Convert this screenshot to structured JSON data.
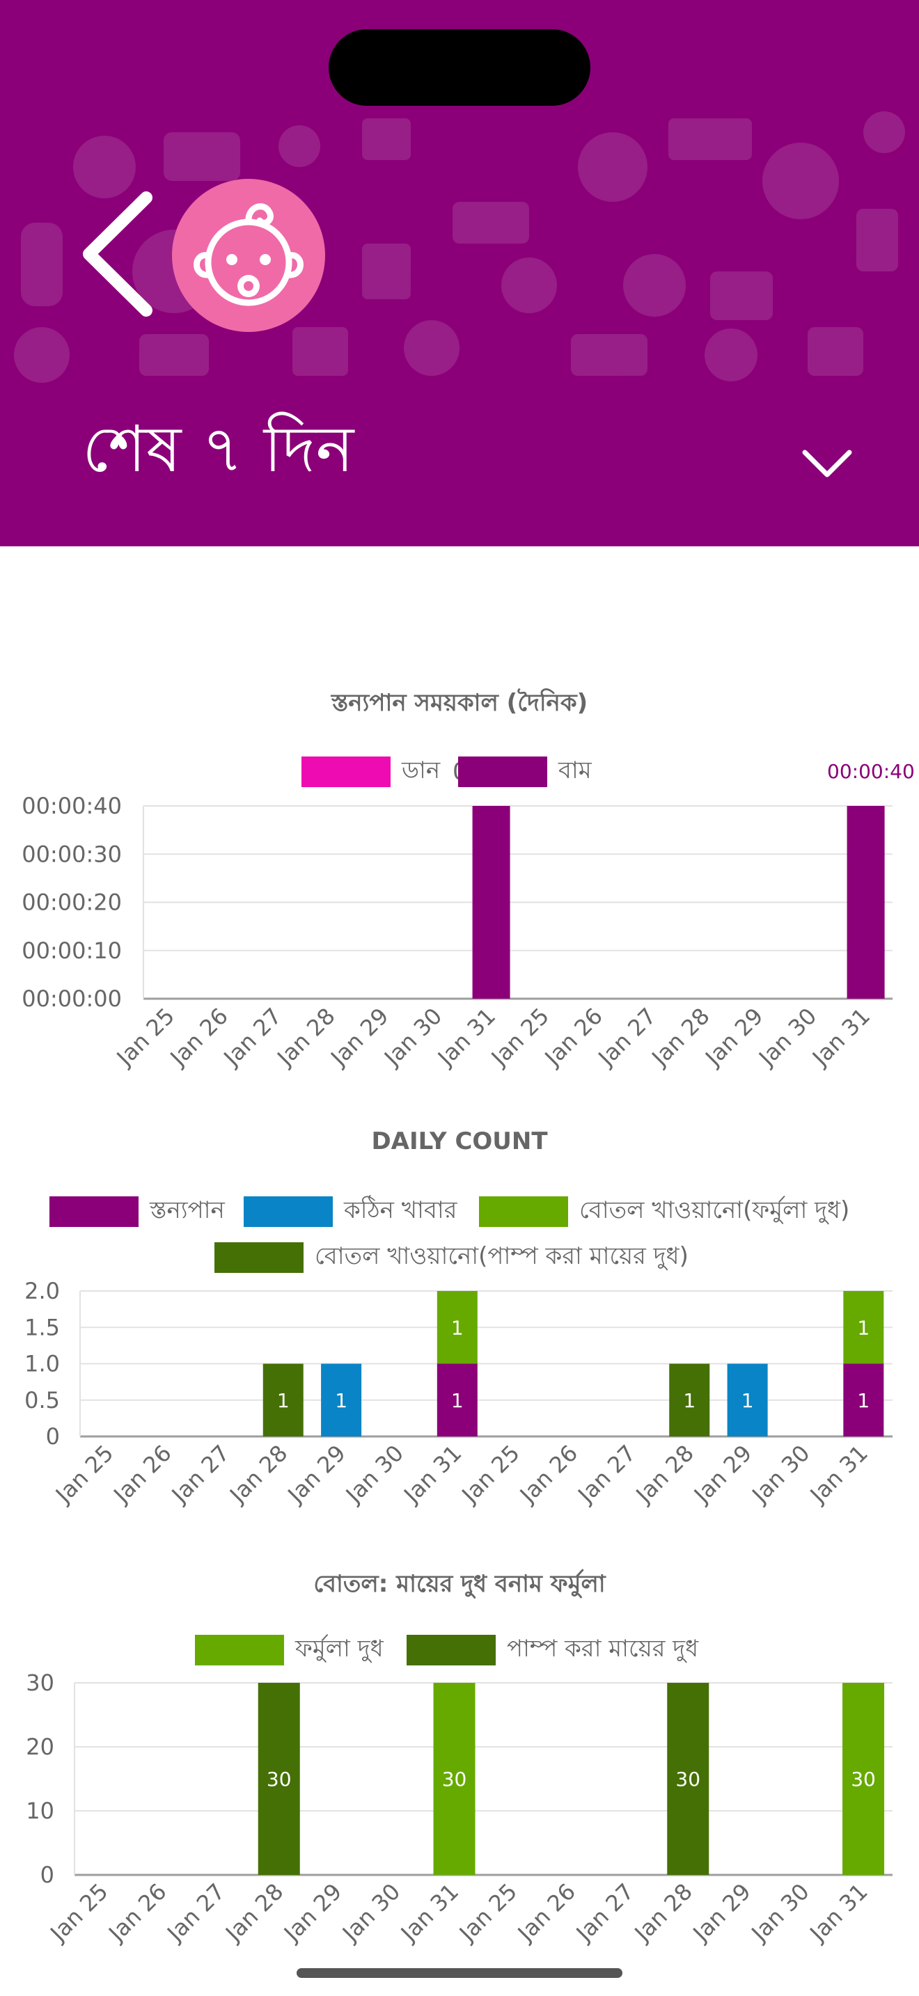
{
  "header": {
    "range_label": "শেষ ৭ দিন",
    "background_color": "#8b0078",
    "avatar_color": "#f06aa8",
    "icons": [
      "back-arrow-icon",
      "baby-icon",
      "chevron-down-icon"
    ]
  },
  "chart_data": [
    {
      "type": "bar",
      "title": "স্তন্যপান সময়কাল (দৈনিক)",
      "categories": [
        "Jan 25",
        "Jan 26",
        "Jan 27",
        "Jan 28",
        "Jan 29",
        "Jan 30",
        "Jan 31",
        "Jan 25",
        "Jan 26",
        "Jan 27",
        "Jan 28",
        "Jan 29",
        "Jan 30",
        "Jan 31"
      ],
      "legend": [
        {
          "name": "ডান",
          "color": "#ee0bb2"
        },
        {
          "name": "বাম",
          "color": "#8b0078"
        }
      ],
      "overlap_text": "0",
      "corner_label": "00:00:40",
      "series": [
        {
          "name": "বাম",
          "color": "#8b0078",
          "values": [
            0,
            0,
            0,
            0,
            0,
            0,
            40,
            0,
            0,
            0,
            0,
            0,
            0,
            40
          ]
        }
      ],
      "ylim": [
        0,
        40
      ],
      "yticks": [
        0,
        10,
        20,
        30,
        40
      ],
      "ytick_labels": [
        "00:00:00",
        "00:00:10",
        "00:00:20",
        "00:00:30",
        "00:00:40"
      ],
      "grid": true
    },
    {
      "type": "bar",
      "stacked": true,
      "title": "DAILY COUNT",
      "categories": [
        "Jan 25",
        "Jan 26",
        "Jan 27",
        "Jan 28",
        "Jan 29",
        "Jan 30",
        "Jan 31",
        "Jan 25",
        "Jan 26",
        "Jan 27",
        "Jan 28",
        "Jan 29",
        "Jan 30",
        "Jan 31"
      ],
      "legend": [
        {
          "name": "স্তন্যপান",
          "color": "#8b0078"
        },
        {
          "name": "কঠিন খাবার",
          "color": "#0984c6"
        },
        {
          "name": "বোতল খাওয়ানো(ফর্মুলা দুধ)",
          "color": "#66aa00"
        },
        {
          "name": "বোতল খাওয়ানো(পাম্প করা মায়ের দুধ)",
          "color": "#457005"
        }
      ],
      "series": [
        {
          "name": "স্তন্যপান",
          "color": "#8b0078",
          "values": [
            0,
            0,
            0,
            0,
            0,
            0,
            1,
            0,
            0,
            0,
            0,
            0,
            0,
            1
          ]
        },
        {
          "name": "কঠিন খাবার",
          "color": "#0984c6",
          "values": [
            0,
            0,
            0,
            0,
            1,
            0,
            0,
            0,
            0,
            0,
            0,
            1,
            0,
            0
          ]
        },
        {
          "name": "বোতল খাওয়ানো(ফর্মুলা দুধ)",
          "color": "#66aa00",
          "values": [
            0,
            0,
            0,
            0,
            0,
            0,
            1,
            0,
            0,
            0,
            0,
            0,
            0,
            1
          ]
        },
        {
          "name": "বোতল খাওয়ানো(পাম্প করা মায়ের দুধ)",
          "color": "#457005",
          "values": [
            0,
            0,
            0,
            1,
            0,
            0,
            0,
            0,
            0,
            0,
            1,
            0,
            0,
            0
          ]
        }
      ],
      "ylim": [
        0,
        2
      ],
      "yticks": [
        0,
        0.5,
        1,
        1.5,
        2
      ],
      "ytick_labels": [
        "0",
        "0.5",
        "1.0",
        "1.5",
        "2.0"
      ],
      "grid": true
    },
    {
      "type": "bar",
      "title": "বোতল: মায়ের দুধ বনাম ফর্মুলা",
      "categories": [
        "Jan 25",
        "Jan 26",
        "Jan 27",
        "Jan 28",
        "Jan 29",
        "Jan 30",
        "Jan 31",
        "Jan 25",
        "Jan 26",
        "Jan 27",
        "Jan 28",
        "Jan 29",
        "Jan 30",
        "Jan 31"
      ],
      "legend": [
        {
          "name": "ফর্মুলা দুধ",
          "color": "#66aa00"
        },
        {
          "name": "পাম্প করা মায়ের দুধ",
          "color": "#457005"
        }
      ],
      "series": [
        {
          "name": "ফর্মুলা দুধ",
          "color": "#66aa00",
          "values": [
            0,
            0,
            0,
            0,
            0,
            0,
            30,
            0,
            0,
            0,
            0,
            0,
            0,
            30
          ]
        },
        {
          "name": "পাম্প করা মায়ের দুধ",
          "color": "#457005",
          "values": [
            0,
            0,
            0,
            30,
            0,
            0,
            0,
            0,
            0,
            0,
            30,
            0,
            0,
            0
          ]
        }
      ],
      "ylim": [
        0,
        30
      ],
      "yticks": [
        0,
        10,
        20,
        30
      ],
      "ytick_labels": [
        "0",
        "10",
        "20",
        "30"
      ],
      "grid": true
    }
  ]
}
